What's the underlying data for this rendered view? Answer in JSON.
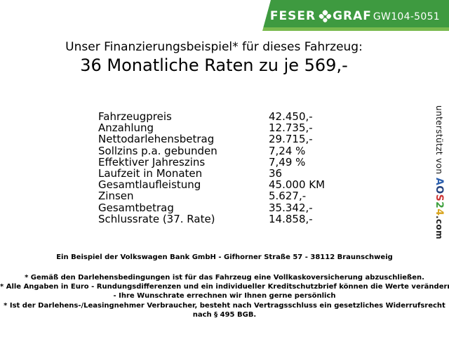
{
  "header": {
    "logo_feser": "FESER",
    "logo_graf": "GRAF",
    "vehicle_id": "GW104-5051",
    "colors": {
      "banner_green": "#3e9a40",
      "banner_bottom_strip": "#79ba4e",
      "logo_text": "#ffffff"
    }
  },
  "title": {
    "line1": "Unser Finanzierungsbeispiel* für dieses Fahrzeug:",
    "line2": "36 Monatliche Raten zu je 569,-"
  },
  "finance_table": {
    "rows": [
      {
        "label": "Fahrzeugpreis",
        "value": "42.450,-"
      },
      {
        "label": "Anzahlung",
        "value": "12.735,-"
      },
      {
        "label": "Nettodarlehensbetrag",
        "value": "29.715,-"
      },
      {
        "label": "Sollzins p.a. gebunden",
        "value": "7,24 %"
      },
      {
        "label": "Effektiver Jahreszins",
        "value": "7,49 %"
      },
      {
        "label": "Laufzeit in Monaten",
        "value": "36"
      },
      {
        "label": "Gesamtlaufleistung",
        "value": "45.000 KM"
      },
      {
        "label": "Zinsen",
        "value": "5.627,-"
      },
      {
        "label": "Gesamtbetrag",
        "value": "35.342,-"
      },
      {
        "label": "Schlussrate (37. Rate)",
        "value": "14.858,-"
      }
    ]
  },
  "footer": {
    "bank_line": "Ein Beispiel der Volkswagen Bank GmbH - Gifhorner Straße 57 - 38112 Braunschweig",
    "disclaimer_lines": [
      "* Gemäß den Darlehensbedingungen ist für das Fahrzeug eine Vollkaskoversicherung abzuschließen.",
      "* Alle Angaben in Euro - Rundungsdifferenzen und ein individueller Kreditschutzbrief können die Werte verändern",
      "- Ihre Wunschrate errechnen wir Ihnen gerne persönlich",
      "* Ist der Darlehens-/Leasingnehmer Verbraucher, besteht nach Vertragsschluss ein gesetzliches Widerrufsrecht",
      "nach § 495 BGB."
    ]
  },
  "sidebar": {
    "supported_by": "unterstützt von ",
    "brand_letters": [
      {
        "ch": "A",
        "style": "color:#2b5fae"
      },
      {
        "ch": "O",
        "style": "color:#24427e"
      },
      {
        "ch": "S",
        "style": "color:#cc3333"
      },
      {
        "ch": "2",
        "style": "color:#3fa13f"
      },
      {
        "ch": "4",
        "style": "color:#d9a51f"
      }
    ],
    "domain_suffix": ".com"
  }
}
